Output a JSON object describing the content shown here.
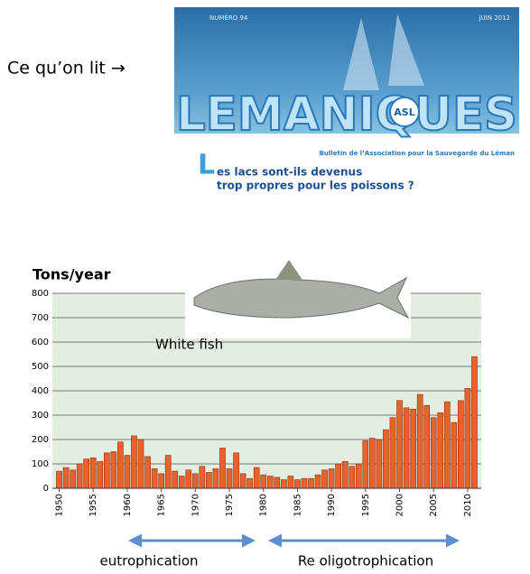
{
  "header": {
    "intro": "Ce qu’on lit →"
  },
  "cover": {
    "issue": "NUMÉRO 94",
    "date": "JUIN 2012",
    "title": "LEMANIQUES",
    "logo": "ASL",
    "subtitle": "Bulletin de l’Association pour la Sauvegarde du Léman",
    "drop_cap": "L",
    "headline": [
      "es lacs sont-ils devenus",
      "trop propres pour les poissons ?"
    ]
  },
  "chart_data": {
    "type": "bar",
    "ylabel": "Tons/year",
    "annotation": "White fish",
    "x": [
      1950,
      1951,
      1952,
      1953,
      1954,
      1955,
      1956,
      1957,
      1958,
      1959,
      1960,
      1961,
      1962,
      1963,
      1964,
      1965,
      1966,
      1967,
      1968,
      1969,
      1970,
      1971,
      1972,
      1973,
      1974,
      1975,
      1976,
      1977,
      1978,
      1979,
      1980,
      1981,
      1982,
      1983,
      1984,
      1985,
      1986,
      1987,
      1988,
      1989,
      1990,
      1991,
      1992,
      1993,
      1994,
      1995,
      1996,
      1997,
      1998,
      1999,
      2000,
      2001,
      2002,
      2003,
      2004,
      2005,
      2006,
      2007,
      2008,
      2009,
      2010,
      2011
    ],
    "values": [
      70,
      85,
      75,
      100,
      120,
      125,
      110,
      145,
      150,
      190,
      135,
      215,
      200,
      130,
      80,
      60,
      135,
      70,
      50,
      75,
      60,
      90,
      65,
      80,
      165,
      80,
      145,
      60,
      40,
      85,
      55,
      50,
      45,
      35,
      50,
      35,
      40,
      40,
      55,
      75,
      80,
      100,
      110,
      90,
      100,
      195,
      205,
      200,
      240,
      290,
      360,
      330,
      325,
      385,
      340,
      290,
      310,
      355,
      270,
      360,
      410,
      540
    ],
    "color": "#e8632b",
    "xlim": [
      1949,
      2012
    ],
    "xticks": [
      1950,
      1955,
      1960,
      1965,
      1970,
      1975,
      1980,
      1985,
      1990,
      1995,
      2000,
      2005,
      2010
    ],
    "ylim": [
      0,
      800
    ],
    "yticks": [
      0,
      100,
      200,
      300,
      400,
      500,
      600,
      700,
      800
    ],
    "grid": true,
    "periods": [
      "eutrophication",
      "Re oligotrophication"
    ]
  }
}
